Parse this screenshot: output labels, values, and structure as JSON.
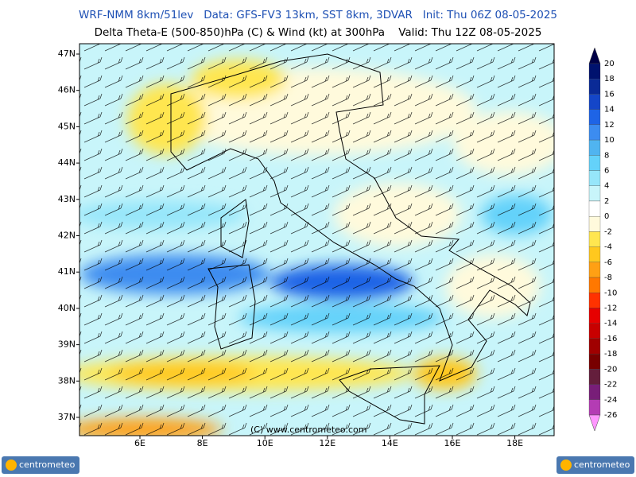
{
  "header": {
    "title": "WRF-NMM 8km/51lev   Data: GFS-FV3 13km, SST 8km, 3DVAR   Init: Thu 06Z 08-05-2025",
    "subtitle": "Delta Theta-E (500-850)hPa (C) & Wind (kt) at 300hPa    Valid: Thu 12Z 08-05-2025"
  },
  "map": {
    "lat_labels": [
      "47N",
      "46N",
      "45N",
      "44N",
      "43N",
      "42N",
      "41N",
      "40N",
      "39N",
      "38N",
      "37N"
    ],
    "lon_labels": [
      "6E",
      "8E",
      "10E",
      "12E",
      "14E",
      "16E",
      "18E"
    ],
    "credit": "(C) www.centrometeo.com"
  },
  "colorbar": {
    "levels": [
      20,
      18,
      16,
      14,
      12,
      10,
      8,
      6,
      4,
      2,
      0,
      -2,
      -4,
      -6,
      -8,
      -10,
      -12,
      -14,
      -16,
      -18,
      -20,
      -22,
      -24,
      -26
    ],
    "colors": [
      "#000046",
      "#00126e",
      "#0a2a96",
      "#1446c8",
      "#1e64e6",
      "#3c8cf0",
      "#50b4f0",
      "#64d2fa",
      "#96e6fa",
      "#c8f5fa",
      "#ffffff",
      "#fffadc",
      "#ffe650",
      "#ffc81e",
      "#ffa014",
      "#ff7800",
      "#ff3200",
      "#e60000",
      "#c80000",
      "#a00000",
      "#780000",
      "#641e3c",
      "#781e78",
      "#b43cb4",
      "#ff96ff"
    ]
  },
  "logos": [
    "centrometeo",
    "centrometeo"
  ]
}
